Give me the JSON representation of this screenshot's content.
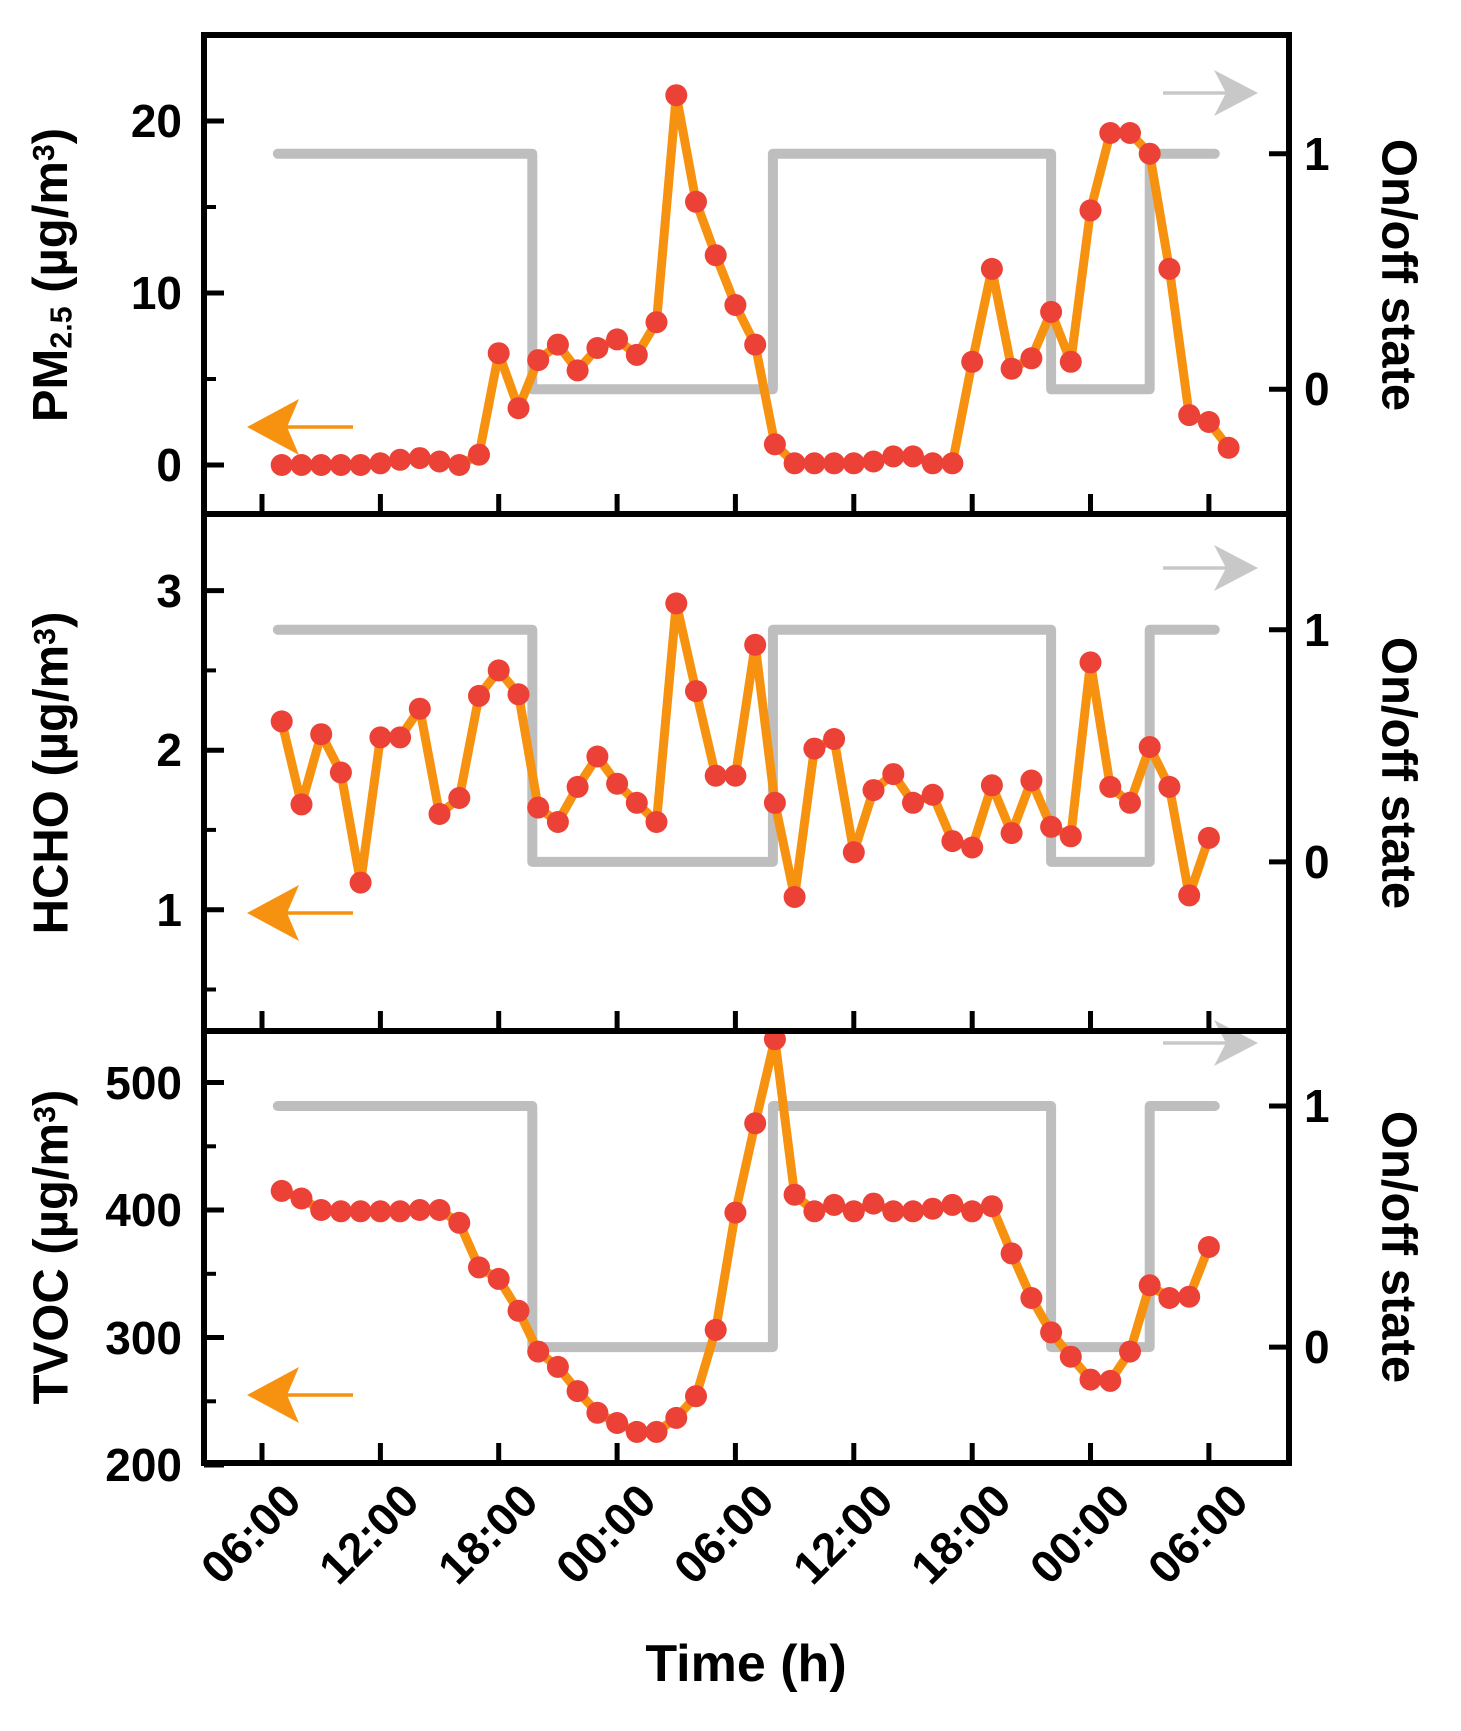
{
  "figure": {
    "x_axis": {
      "title": "Time (h)",
      "tick_hours": [
        0,
        6,
        12,
        18,
        24,
        30,
        36,
        42,
        48
      ],
      "tick_labels": [
        "06:00",
        "12:00",
        "18:00",
        "00:00",
        "06:00",
        "12:00",
        "18:00",
        "00:00",
        "06:00"
      ],
      "xlim_hours": [
        -2.95,
        52.1
      ]
    },
    "right_axis": {
      "label": "On/off state",
      "tick_labels": [
        "1",
        "0"
      ]
    },
    "onoff_schedule_hours": {
      "start": 0.8,
      "end": 48.3,
      "off_intervals": [
        [
          13.7,
          25.9
        ],
        [
          40.0,
          45.0
        ]
      ]
    },
    "colors": {
      "series_line": "#F6920F",
      "marker": "#EB4136",
      "onoff_line": "#BEBEBE",
      "gray_arrow": "#C8C8C8",
      "axis": "#000000"
    },
    "arrows": {
      "left_arrow_meaning": "series read on left concentration axis",
      "right_arrow_meaning": "gray step line read on right on/off axis"
    }
  },
  "chart_data": [
    {
      "type": "line",
      "id": "pm25",
      "series_name": "PM2.5",
      "ylabel_text": "PM2.5 (µg/m3)",
      "ylabel_segments": [
        {
          "text": "PM"
        },
        {
          "text": "2.5",
          "script": "sub"
        },
        {
          "text": " (µg/m"
        },
        {
          "text": "3",
          "script": "sup"
        },
        {
          "text": ")"
        }
      ],
      "ylim": [
        -2.85,
        25.0
      ],
      "yticks": [
        {
          "value": 0,
          "label": "0"
        },
        {
          "value": 10,
          "label": "10"
        },
        {
          "value": 20,
          "label": "20"
        }
      ],
      "yminor": [
        5,
        15
      ],
      "start_hour": 1,
      "values": [
        0,
        0,
        0,
        0,
        0,
        0.1,
        0.3,
        0.4,
        0.2,
        0,
        0.6,
        6.5,
        3.3,
        6.1,
        7.0,
        5.5,
        6.8,
        7.3,
        6.4,
        8.3,
        21.5,
        15.3,
        12.2,
        9.3,
        7.0,
        1.2,
        0.1,
        0.1,
        0.1,
        0.1,
        0.2,
        0.5,
        0.5,
        0.1,
        0.1,
        6.0,
        11.4,
        5.6,
        6.2,
        8.9,
        6.0,
        14.8,
        19.3,
        19.3,
        18.1,
        11.4,
        2.9,
        2.5,
        1.0
      ],
      "onoff_levels": {
        "on": 18.1,
        "off": 4.4
      }
    },
    {
      "type": "line",
      "id": "hcho",
      "series_name": "HCHO",
      "ylabel_text": "HCHO (µg/m3)",
      "ylabel_segments": [
        {
          "text": "HCHO (µg/m"
        },
        {
          "text": "3",
          "script": "sup"
        },
        {
          "text": ")"
        }
      ],
      "ylim": [
        0.24,
        3.48
      ],
      "yticks": [
        {
          "value": 1,
          "label": "1"
        },
        {
          "value": 2,
          "label": "2"
        },
        {
          "value": 3,
          "label": "3"
        }
      ],
      "yminor": [
        0.5,
        1.5,
        2.5
      ],
      "start_hour": 1,
      "values": [
        2.18,
        1.66,
        2.1,
        1.86,
        1.17,
        2.08,
        2.08,
        2.26,
        1.6,
        1.7,
        2.34,
        2.5,
        2.35,
        1.64,
        1.55,
        1.77,
        1.96,
        1.79,
        1.67,
        1.55,
        2.92,
        2.37,
        1.84,
        1.84,
        2.66,
        1.67,
        1.08,
        2.01,
        2.07,
        1.36,
        1.75,
        1.85,
        1.67,
        1.72,
        1.43,
        1.39,
        1.78,
        1.48,
        1.81,
        1.52,
        1.46,
        2.55,
        1.77,
        1.67,
        2.02,
        1.77,
        1.09,
        1.45
      ],
      "onoff_levels": {
        "on": 2.755,
        "off": 1.3
      }
    },
    {
      "type": "line",
      "id": "tvoc",
      "series_name": "TVOC",
      "ylabel_text": "TVOC (µg/m3)",
      "ylabel_segments": [
        {
          "text": "TVOC (µg/m"
        },
        {
          "text": "3",
          "script": "sup"
        },
        {
          "text": ")"
        }
      ],
      "ylim": [
        201.6,
        540.4
      ],
      "yticks": [
        {
          "value": 200,
          "label": "200"
        },
        {
          "value": 300,
          "label": "300"
        },
        {
          "value": 400,
          "label": "400"
        },
        {
          "value": 500,
          "label": "500"
        }
      ],
      "yminor": [
        250,
        350,
        450
      ],
      "start_hour": 1,
      "values": [
        415,
        409,
        400,
        399,
        399,
        399,
        399,
        400,
        400,
        390,
        355,
        346,
        321,
        289,
        277,
        258,
        241,
        233,
        226,
        226,
        237,
        254,
        306,
        398,
        468,
        534,
        412,
        399,
        404,
        399,
        405,
        399,
        399,
        401,
        404,
        399,
        403,
        366,
        331,
        304,
        285,
        267,
        266,
        289,
        341,
        331,
        332,
        371
      ],
      "onoff_levels": {
        "on": 481.6,
        "off": 292.5
      }
    }
  ]
}
